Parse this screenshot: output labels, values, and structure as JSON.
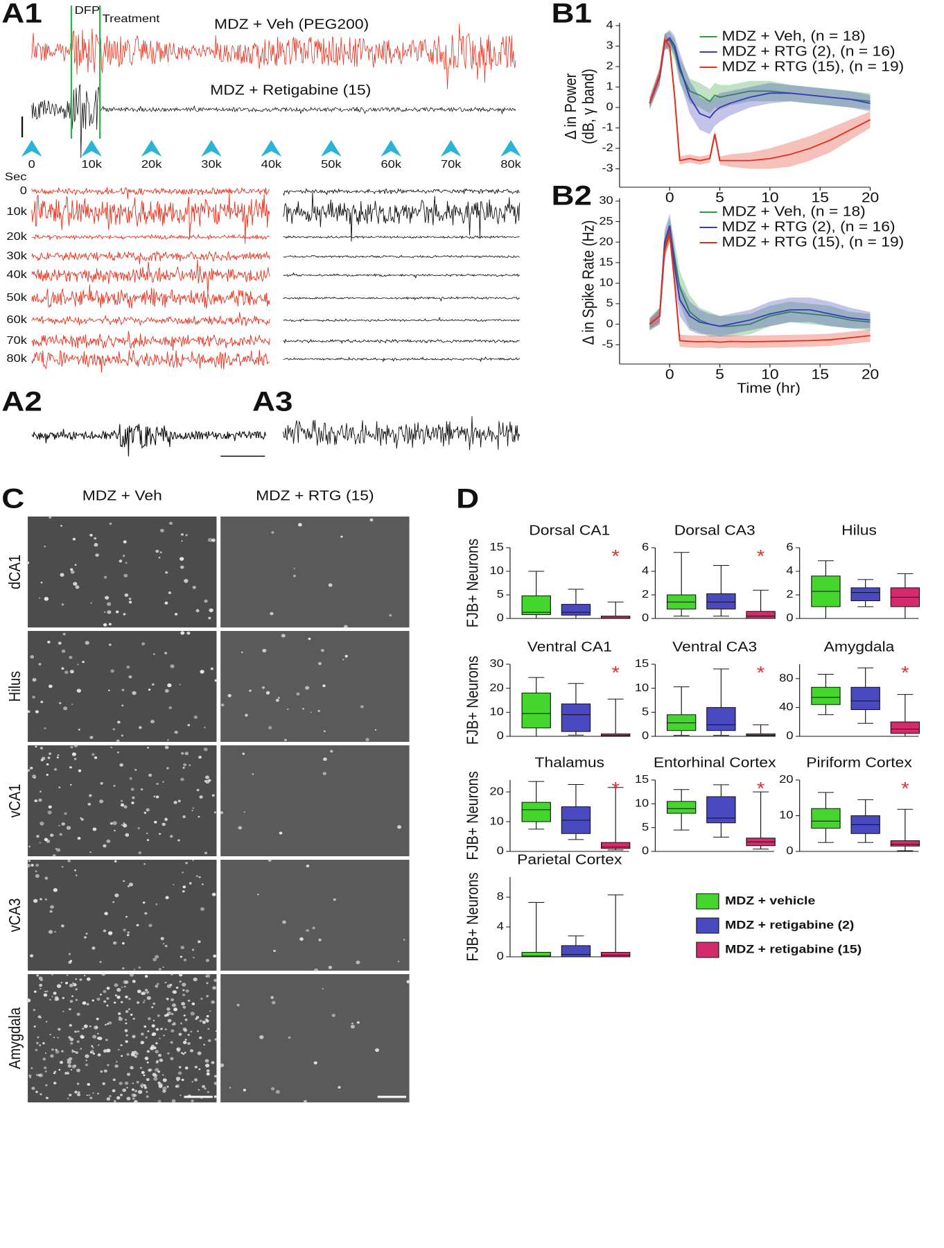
{
  "panel_labels": {
    "a1": "A1",
    "a2": "A2",
    "a3": "A3",
    "b1": "B1",
    "b2": "B2",
    "c": "C",
    "d": "D"
  },
  "a1": {
    "dfp": "DFP",
    "treatment": "Treatment",
    "veh_title": "MDZ + Veh (PEG200)",
    "rtg_title": "MDZ + Retigabine (15)",
    "arrow_labels": [
      "0",
      "10k",
      "20k",
      "30k",
      "40k",
      "50k",
      "60k",
      "70k",
      "80k"
    ],
    "sec": "Sec",
    "row_labels": [
      "0",
      "10k",
      "20k",
      "30k",
      "40k",
      "50k",
      "60k",
      "70k",
      "80k"
    ]
  },
  "c": {
    "columns": [
      "MDZ + Veh",
      "MDZ + RTG (15)"
    ],
    "rows": [
      "dCA1",
      "Hilus",
      "vCA1",
      "vCA3",
      "Amygdala"
    ]
  },
  "d_legend": [
    {
      "name": "MDZ + vehicle",
      "color": "#44d62c"
    },
    {
      "name": "MDZ + retigabine (2)",
      "color": "#4a4ac0"
    },
    {
      "name": "MDZ + retigabine (15)",
      "color": "#d42a6e"
    }
  ],
  "chart_data": [
    {
      "type": "line",
      "ylabel": [
        "Δ in Power",
        "(dB, γ band)"
      ],
      "legend": "upper right",
      "x": [
        -2,
        -1,
        -0.5,
        0,
        0.5,
        1,
        2,
        3,
        4,
        4.5,
        5,
        6,
        8,
        10,
        12,
        14,
        16,
        18,
        20
      ],
      "xlim": [
        -5,
        20
      ],
      "xticks": [
        0,
        5,
        10,
        15,
        20
      ],
      "ylim": [
        -3.9,
        4
      ],
      "yticks": [
        -3,
        -2,
        -1,
        0,
        1,
        2,
        3,
        4
      ],
      "series": [
        {
          "name": "MDZ + Veh, (n = 18)",
          "color": "#2e9e3a",
          "values": [
            0.2,
            1.5,
            3.2,
            3.3,
            2.8,
            1.8,
            0.8,
            0.6,
            0.3,
            0.6,
            0.5,
            0.6,
            0.8,
            0.8,
            0.7,
            0.6,
            0.5,
            0.4,
            0.3
          ],
          "error": [
            0.3,
            0.4,
            0.4,
            0.4,
            0.5,
            0.6,
            0.6,
            0.6,
            0.6,
            0.6,
            0.6,
            0.5,
            0.5,
            0.5,
            0.4,
            0.4,
            0.4,
            0.4,
            0.4
          ]
        },
        {
          "name": "MDZ + RTG (2), (n = 16)",
          "color": "#3a3ab8",
          "values": [
            0.2,
            1.5,
            3.2,
            3.4,
            3.0,
            2.0,
            0.5,
            -0.3,
            -0.5,
            -0.2,
            0,
            0.2,
            0.5,
            0.7,
            0.7,
            0.6,
            0.5,
            0.4,
            0.2
          ],
          "error": [
            0.3,
            0.4,
            0.4,
            0.4,
            0.5,
            0.7,
            0.8,
            0.8,
            0.8,
            0.7,
            0.7,
            0.6,
            0.5,
            0.5,
            0.4,
            0.4,
            0.4,
            0.4,
            0.4
          ]
        },
        {
          "name": "MDZ + RTG (15), (n = 19)",
          "color": "#e0301e",
          "values": [
            0.2,
            1.6,
            3.3,
            3.0,
            0.5,
            -2.6,
            -2.5,
            -2.6,
            -2.5,
            -1.3,
            -2.6,
            -2.6,
            -2.6,
            -2.5,
            -2.3,
            -2.0,
            -1.6,
            -1.1,
            -0.6
          ],
          "error": [
            0.2,
            0.3,
            0.3,
            0.3,
            0.3,
            0.2,
            0.2,
            0.2,
            0.2,
            0.2,
            0.2,
            0.3,
            0.4,
            0.5,
            0.6,
            0.6,
            0.6,
            0.5,
            0.4
          ]
        }
      ]
    },
    {
      "type": "line",
      "ylabel": [
        "Δ in Spike Rate (Hz)"
      ],
      "xlabel": "Time (hr)",
      "legend": "upper right",
      "x": [
        -2,
        -1,
        -0.5,
        0,
        0.5,
        1,
        2,
        3,
        4,
        5,
        6,
        8,
        10,
        12,
        14,
        16,
        18,
        20
      ],
      "xlim": [
        -5,
        20
      ],
      "xticks": [
        0,
        5,
        10,
        15,
        20
      ],
      "ylim": [
        -9.7,
        30
      ],
      "yticks": [
        -5,
        0,
        5,
        10,
        15,
        20,
        25,
        30
      ],
      "series": [
        {
          "name": "MDZ + Veh, (n = 18)",
          "color": "#2e9e3a",
          "values": [
            0,
            2,
            19,
            23,
            16,
            9,
            3,
            1,
            0,
            -0.5,
            -0.5,
            0,
            2,
            3,
            2.5,
            2,
            1,
            0.5
          ],
          "error": [
            1.5,
            2,
            3,
            3,
            4,
            4,
            4,
            3,
            3,
            2.5,
            2.5,
            2.5,
            2.5,
            2.5,
            2.5,
            2.5,
            2,
            2
          ]
        },
        {
          "name": "MDZ + RTG (2), (n = 16)",
          "color": "#3a3ab8",
          "values": [
            0,
            2,
            20,
            24,
            14,
            6,
            2,
            0.5,
            0,
            -0.5,
            0,
            1,
            2.5,
            3.5,
            3.5,
            2.5,
            1.5,
            1
          ],
          "error": [
            1.5,
            2,
            3,
            3,
            4,
            4,
            3.5,
            3,
            2.5,
            2.5,
            2.5,
            2.5,
            3,
            3,
            3,
            3,
            2.5,
            2
          ]
        },
        {
          "name": "MDZ + RTG (15), (n = 19)",
          "color": "#e0301e",
          "values": [
            0,
            2,
            18,
            22,
            10,
            -4,
            -4.2,
            -4.3,
            -4.2,
            -4.4,
            -4.2,
            -4.3,
            -4.2,
            -4.1,
            -4,
            -3.8,
            -3.3,
            -2.8
          ],
          "error": [
            1,
            1.5,
            2,
            2,
            2,
            1.5,
            1.5,
            1.5,
            1.5,
            1.5,
            1.5,
            1.5,
            1.5,
            1.5,
            1.5,
            1.5,
            1.5,
            1.5
          ]
        }
      ]
    },
    {
      "type": "box",
      "title": "Dorsal CA1",
      "ylabel": "FJB+ Neurons",
      "ylim": [
        0,
        15
      ],
      "yticks": [
        0,
        5,
        10,
        15
      ],
      "annotation": "*",
      "min": [
        0,
        0,
        0
      ],
      "q1": [
        0.8,
        0.7,
        0
      ],
      "median": [
        1.3,
        1.3,
        0.1
      ],
      "q3": [
        4.8,
        3,
        0.5
      ],
      "max": [
        10,
        6.2,
        3.5
      ]
    },
    {
      "type": "box",
      "title": "Dorsal  CA3",
      "ylim": [
        0,
        6
      ],
      "yticks": [
        0,
        2,
        4,
        6
      ],
      "annotation": "*",
      "min": [
        0.2,
        0.2,
        0
      ],
      "q1": [
        0.8,
        0.8,
        0
      ],
      "median": [
        1.4,
        1.4,
        0.2
      ],
      "q3": [
        2,
        2.1,
        0.6
      ],
      "max": [
        5.6,
        4.5,
        2.4
      ]
    },
    {
      "type": "box",
      "title": "Hilus",
      "ylim": [
        0,
        6
      ],
      "yticks": [
        0,
        2,
        4,
        6
      ],
      "min": [
        0,
        1,
        0
      ],
      "q1": [
        1,
        1.5,
        1
      ],
      "median": [
        2.3,
        2.2,
        1.8
      ],
      "q3": [
        3.6,
        2.6,
        2.6
      ],
      "max": [
        4.9,
        3.3,
        3.8
      ]
    },
    {
      "type": "box",
      "title": "Ventral  CA1",
      "ylabel": "FJB+ Neurons",
      "ylim": [
        0,
        30
      ],
      "yticks": [
        0,
        10,
        20,
        30
      ],
      "annotation": "*",
      "min": [
        0,
        0.5,
        0
      ],
      "q1": [
        3.5,
        2,
        0
      ],
      "median": [
        9.5,
        9,
        0.3
      ],
      "q3": [
        18,
        13.5,
        1
      ],
      "max": [
        24.5,
        22,
        15.5
      ]
    },
    {
      "type": "box",
      "title": "Ventral CA3",
      "ylim": [
        0,
        15
      ],
      "yticks": [
        0,
        5,
        10,
        15
      ],
      "annotation": "*",
      "min": [
        0.2,
        0.2,
        0
      ],
      "q1": [
        1.2,
        1.2,
        0
      ],
      "median": [
        2.8,
        2.4,
        0.2
      ],
      "q3": [
        4.5,
        6,
        0.5
      ],
      "max": [
        10.3,
        14,
        2.4
      ]
    },
    {
      "type": "box",
      "title": "Amygdala",
      "ylim": [
        0,
        100
      ],
      "yticks": [
        0,
        40,
        80
      ],
      "annotation": "*",
      "min": [
        30,
        18,
        0
      ],
      "q1": [
        44,
        37,
        4
      ],
      "median": [
        54,
        49,
        10
      ],
      "q3": [
        68,
        68,
        20
      ],
      "max": [
        86,
        95,
        58
      ]
    },
    {
      "type": "box",
      "title": "Thalamus",
      "ylabel": "FJB+ Neurons",
      "ylim": [
        0,
        24
      ],
      "yticks": [
        0,
        10,
        20
      ],
      "annotation": "*",
      "min": [
        7.5,
        4,
        0.5
      ],
      "q1": [
        10,
        6,
        1
      ],
      "median": [
        14,
        10.5,
        1.5
      ],
      "q3": [
        16.5,
        15,
        3
      ],
      "max": [
        23.5,
        22.5,
        21.5
      ]
    },
    {
      "type": "box",
      "title": "Entorhinal Cortex",
      "ylim": [
        0,
        15
      ],
      "yticks": [
        0,
        5,
        10,
        15
      ],
      "annotation": "*",
      "min": [
        4.5,
        3,
        0.5
      ],
      "q1": [
        8,
        6,
        1.2
      ],
      "median": [
        9,
        7,
        2
      ],
      "q3": [
        10.5,
        11.5,
        2.8
      ],
      "max": [
        13,
        14,
        12.5
      ]
    },
    {
      "type": "box",
      "title": "Piriform Cortex",
      "ylim": [
        0,
        20
      ],
      "yticks": [
        0,
        10,
        20
      ],
      "annotation": "*",
      "min": [
        2.5,
        2.5,
        0.2
      ],
      "q1": [
        6.5,
        5,
        1.5
      ],
      "median": [
        8.5,
        7.5,
        2
      ],
      "q3": [
        12,
        10,
        3
      ],
      "max": [
        16.5,
        14.5,
        11.8
      ]
    },
    {
      "type": "box",
      "title": "Parietal Cortex",
      "ylabel": "FJB+ Neurons",
      "ylim": [
        0,
        10.7
      ],
      "yticks": [
        0,
        4,
        8
      ],
      "min": [
        0,
        0,
        0
      ],
      "q1": [
        0,
        0,
        0
      ],
      "median": [
        0.1,
        0.3,
        0.2
      ],
      "q3": [
        0.6,
        1.5,
        0.6
      ],
      "max": [
        7.3,
        2.8,
        8.3
      ]
    }
  ]
}
